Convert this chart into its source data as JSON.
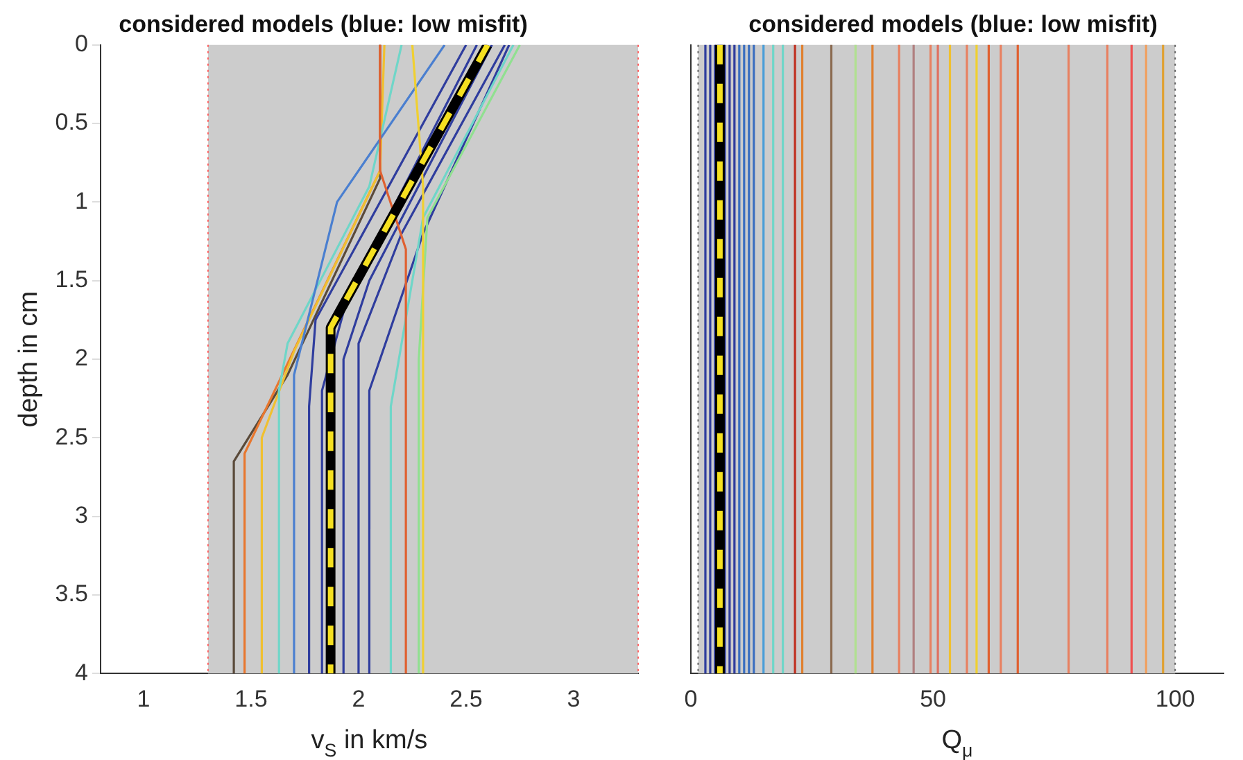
{
  "chart_data": [
    {
      "type": "line",
      "title": "considered models (blue: low misfit)",
      "xlabel": "v$_{S}$ in km/s",
      "ylabel": "depth in cm",
      "xlim": [
        0.8,
        3.3
      ],
      "xticks": [
        1,
        1.5,
        2,
        2.5,
        3
      ],
      "ylim": [
        4,
        0
      ],
      "yticks": [
        0,
        0.5,
        1,
        1.5,
        2,
        2.5,
        3,
        3.5,
        4
      ],
      "grid": false,
      "legend": false,
      "bands": [
        {
          "axis": "x",
          "from": 1.3,
          "to": 3.3,
          "color": "#cccccc"
        }
      ],
      "ref_lines": [
        {
          "axis": "x",
          "value": 1.3,
          "color": "#ff6060",
          "line_style": "dotted"
        },
        {
          "axis": "x",
          "value": 3.3,
          "color": "#ff6060",
          "line_style": "dotted"
        }
      ],
      "series": [
        {
          "color": "#5a4a3a",
          "x": [
            2.1,
            2.1,
            1.67,
            1.42,
            1.42
          ],
          "values": [
            0,
            0.85,
            2.1,
            2.65,
            4
          ]
        },
        {
          "color": "#e8772e",
          "x": [
            2.1,
            2.1,
            1.68,
            1.47,
            1.47
          ],
          "values": [
            0,
            0.8,
            2.0,
            2.6,
            4
          ]
        },
        {
          "color": "#f0c030",
          "x": [
            2.12,
            2.1,
            1.7,
            1.55,
            1.55
          ],
          "values": [
            0,
            0.8,
            1.95,
            2.5,
            4
          ]
        },
        {
          "color": "#6fd6c8",
          "x": [
            2.2,
            2.05,
            1.67,
            1.63,
            1.63
          ],
          "values": [
            0,
            0.9,
            1.9,
            2.2,
            4
          ]
        },
        {
          "color": "#4a7fd0",
          "x": [
            2.4,
            1.9,
            1.7,
            1.7,
            1.7
          ],
          "values": [
            0,
            1.0,
            2.1,
            2.5,
            4
          ]
        },
        {
          "color": "#2f3d9e",
          "x": [
            2.5,
            1.8,
            1.77,
            1.77
          ],
          "values": [
            0,
            1.75,
            2.3,
            4
          ]
        },
        {
          "color": "#2f3d9e",
          "x": [
            2.55,
            1.95,
            1.83,
            1.83
          ],
          "values": [
            0,
            1.6,
            2.2,
            4
          ]
        },
        {
          "color": "#2f3d9e",
          "x": [
            2.62,
            2.05,
            1.93,
            1.93
          ],
          "values": [
            0,
            1.5,
            2.0,
            4
          ]
        },
        {
          "color": "#2f3d9e",
          "x": [
            2.68,
            2.2,
            2.0,
            2.0
          ],
          "values": [
            0,
            1.2,
            1.9,
            4
          ]
        },
        {
          "color": "#2f3d9e",
          "x": [
            2.7,
            2.3,
            2.05,
            2.05
          ],
          "values": [
            0,
            1.2,
            2.2,
            4
          ]
        },
        {
          "color": "#6fd6c8",
          "x": [
            2.72,
            2.3,
            2.15,
            2.15
          ],
          "values": [
            0,
            1.1,
            2.3,
            4
          ]
        },
        {
          "color": "#90e090",
          "x": [
            2.75,
            2.32,
            2.28,
            2.28
          ],
          "values": [
            0,
            1.1,
            2.0,
            4
          ]
        },
        {
          "color": "#f0d030",
          "x": [
            2.25,
            2.3,
            2.3,
            2.3
          ],
          "values": [
            0,
            0.9,
            1.2,
            4
          ]
        },
        {
          "color": "#e06030",
          "x": [
            2.1,
            2.1,
            2.22,
            2.22
          ],
          "values": [
            0,
            0.8,
            1.3,
            4
          ]
        },
        {
          "color": "#000000",
          "x": [
            2.6,
            1.87,
            1.87
          ],
          "values": [
            0,
            1.8,
            4
          ]
        },
        {
          "color": "#f5e020",
          "line_style": "dashed",
          "x": [
            2.6,
            1.87,
            1.87
          ],
          "values": [
            0,
            1.8,
            4
          ]
        }
      ]
    },
    {
      "type": "line",
      "title": "considered models (blue: low misfit)",
      "xlabel": "Q$_{μ}$",
      "xlim": [
        0,
        110
      ],
      "xticks": [
        0,
        50,
        100
      ],
      "ylim": [
        4,
        0
      ],
      "yticks": [
        0,
        0.5,
        1,
        1.5,
        2,
        2.5,
        3,
        3.5,
        4
      ],
      "tick_labels": "x",
      "grid": false,
      "legend": false,
      "bands": [
        {
          "axis": "x",
          "from": 1.5,
          "to": 100,
          "color": "#cccccc"
        }
      ],
      "ref_lines": [
        {
          "axis": "x",
          "value": 1.5,
          "color": "#606060",
          "line_style": "dotted"
        },
        {
          "axis": "x",
          "value": 100,
          "color": "#606060",
          "line_style": "dotted"
        }
      ],
      "series": [
        {
          "color": "#2f3d9e",
          "x": [
            3,
            3
          ],
          "values": [
            0,
            4
          ]
        },
        {
          "color": "#2f3d9e",
          "x": [
            4,
            4
          ],
          "values": [
            0,
            4
          ]
        },
        {
          "color": "#2f3d9e",
          "x": [
            5,
            5
          ],
          "values": [
            0,
            4
          ]
        },
        {
          "color": "#2f3d9e",
          "x": [
            7,
            7
          ],
          "values": [
            0,
            4
          ]
        },
        {
          "color": "#2f3d9e",
          "x": [
            8,
            8
          ],
          "values": [
            0,
            4
          ]
        },
        {
          "color": "#2f3d9e",
          "x": [
            9,
            9
          ],
          "values": [
            0,
            4
          ]
        },
        {
          "color": "#3a6ec0",
          "x": [
            10,
            10
          ],
          "values": [
            0,
            4
          ]
        },
        {
          "color": "#3a6ec0",
          "x": [
            11,
            11
          ],
          "values": [
            0,
            4
          ]
        },
        {
          "color": "#3a6ec0",
          "x": [
            12,
            12
          ],
          "values": [
            0,
            4
          ]
        },
        {
          "color": "#3a6ec0",
          "x": [
            13,
            13
          ],
          "values": [
            0,
            4
          ]
        },
        {
          "color": "#4a9ed8",
          "x": [
            15,
            15
          ],
          "values": [
            0,
            4
          ]
        },
        {
          "color": "#6fd6c8",
          "x": [
            17,
            17
          ],
          "values": [
            0,
            4
          ]
        },
        {
          "color": "#6fd6c8",
          "x": [
            19,
            19
          ],
          "values": [
            0,
            4
          ]
        },
        {
          "color": "#c03020",
          "x": [
            21.5,
            21.5
          ],
          "values": [
            0,
            4
          ]
        },
        {
          "color": "#e08030",
          "x": [
            23,
            23
          ],
          "values": [
            0,
            4
          ]
        },
        {
          "color": "#8a6a50",
          "x": [
            29,
            29
          ],
          "values": [
            0,
            4
          ]
        },
        {
          "color": "#b0e090",
          "x": [
            34,
            34
          ],
          "values": [
            0,
            4
          ]
        },
        {
          "color": "#e08030",
          "x": [
            37.5,
            37.5
          ],
          "values": [
            0,
            4
          ]
        },
        {
          "color": "#e88060",
          "x": [
            43,
            43
          ],
          "values": [
            0,
            4
          ]
        },
        {
          "color": "#b08080",
          "x": [
            46,
            46
          ],
          "values": [
            0,
            4
          ]
        },
        {
          "color": "#e88060",
          "x": [
            49.5,
            49.5
          ],
          "values": [
            0,
            4
          ]
        },
        {
          "color": "#e07060",
          "x": [
            51,
            51
          ],
          "values": [
            0,
            4
          ]
        },
        {
          "color": "#f0c030",
          "x": [
            53.5,
            53.5
          ],
          "values": [
            0,
            4
          ]
        },
        {
          "color": "#e88060",
          "x": [
            57,
            57
          ],
          "values": [
            0,
            4
          ]
        },
        {
          "color": "#f0d030",
          "x": [
            59,
            59
          ],
          "values": [
            0,
            4
          ]
        },
        {
          "color": "#e06030",
          "x": [
            61.5,
            61.5
          ],
          "values": [
            0,
            4
          ]
        },
        {
          "color": "#e88060",
          "x": [
            64,
            64
          ],
          "values": [
            0,
            4
          ]
        },
        {
          "color": "#e06030",
          "x": [
            67.5,
            67.5
          ],
          "values": [
            0,
            4
          ]
        },
        {
          "color": "#e88060",
          "x": [
            78,
            78
          ],
          "values": [
            0,
            4
          ]
        },
        {
          "color": "#e88060",
          "x": [
            86,
            86
          ],
          "values": [
            0,
            4
          ]
        },
        {
          "color": "#f05050",
          "x": [
            91,
            91
          ],
          "values": [
            0,
            4
          ]
        },
        {
          "color": "#f0a060",
          "x": [
            94,
            94
          ],
          "values": [
            0,
            4
          ]
        },
        {
          "color": "#e0a030",
          "x": [
            97.5,
            97.5
          ],
          "values": [
            0,
            4
          ]
        },
        {
          "color": "#000000",
          "x": [
            6,
            6
          ],
          "values": [
            0,
            4
          ]
        },
        {
          "color": "#f5e020",
          "line_style": "dashed",
          "x": [
            6,
            6
          ],
          "values": [
            0,
            4
          ]
        }
      ]
    }
  ]
}
